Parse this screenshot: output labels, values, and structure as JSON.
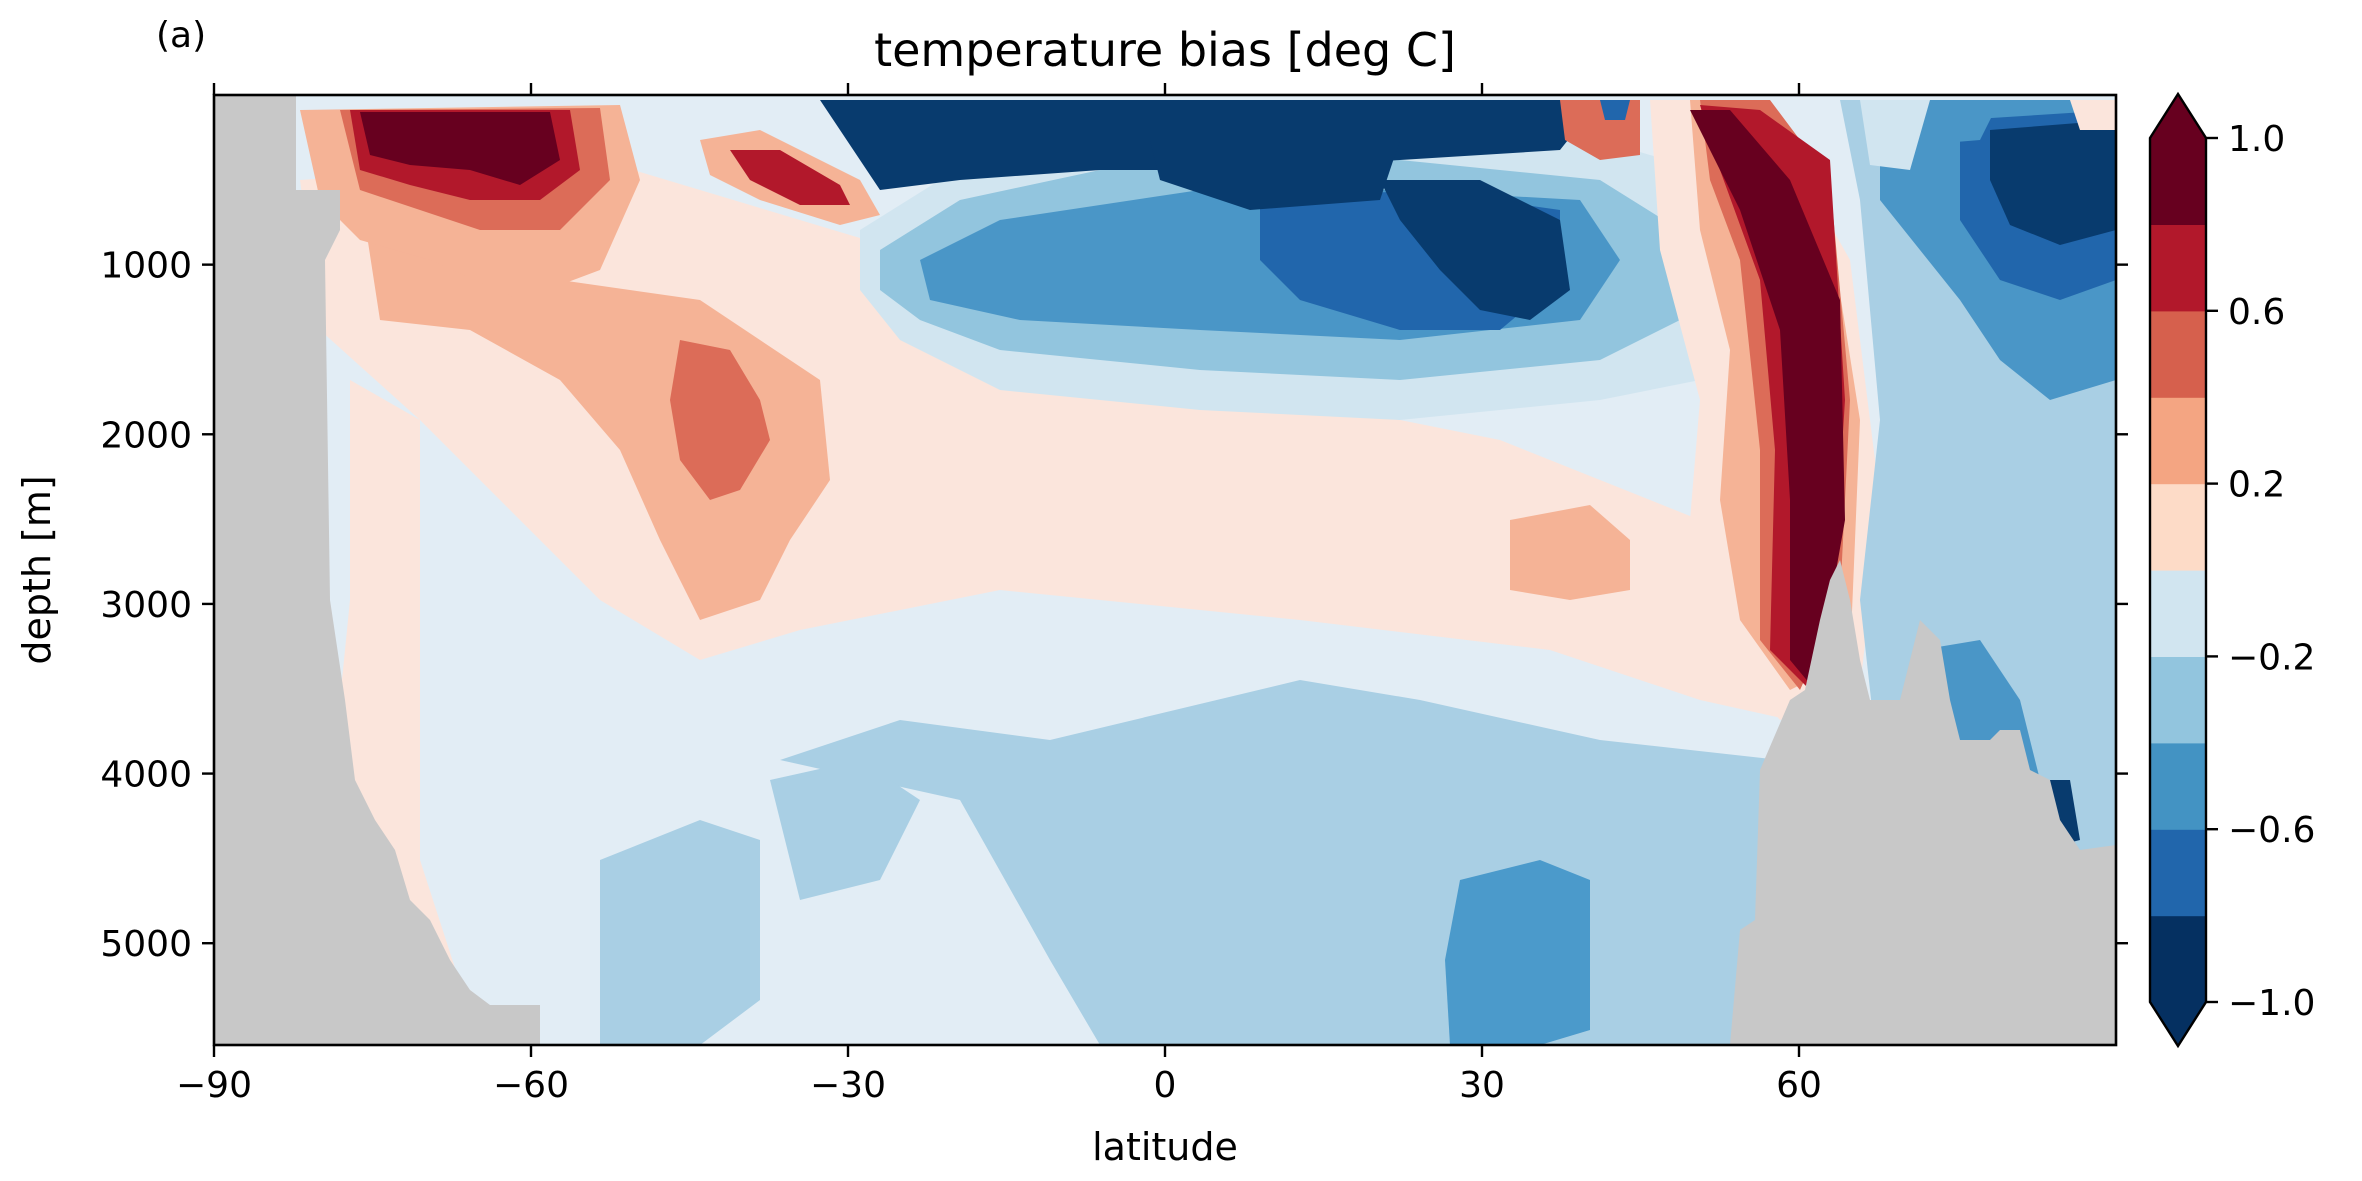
{
  "panel_label": "(a)",
  "chart_data": {
    "type": "heatmap",
    "title": "temperature bias [deg C]",
    "xlabel": "latitude",
    "ylabel": "depth [m]",
    "xlim": [
      -90,
      90
    ],
    "ylim": [
      5600,
      0
    ],
    "y_inverted": true,
    "x_ticks": [
      -90,
      -60,
      -30,
      0,
      30,
      60
    ],
    "x_tick_labels": [
      "−90",
      "−60",
      "−30",
      "0",
      "30",
      "60"
    ],
    "y_ticks": [
      1000,
      2000,
      3000,
      4000,
      5000
    ],
    "y_tick_labels": [
      "1000",
      "2000",
      "3000",
      "4000",
      "5000"
    ],
    "colorbar": {
      "levels": [
        -1.0,
        -0.8,
        -0.6,
        -0.4,
        -0.2,
        0.0,
        0.2,
        0.4,
        0.6,
        0.8,
        1.0
      ],
      "tick_values": [
        1.0,
        0.6,
        0.2,
        -0.2,
        -0.6,
        -1.0
      ],
      "tick_labels": [
        "1.0",
        "0.6",
        "0.2",
        "−0.2",
        "−0.6",
        "−1.0"
      ],
      "extend": "both",
      "colors": [
        "#053061",
        "#2166ac",
        "#4393c3",
        "#92c5de",
        "#d1e5f0",
        "#fddbc7",
        "#f4a582",
        "#d6604d",
        "#b2182b",
        "#67001f"
      ],
      "over_color": "#67001f",
      "under_color": "#053061",
      "placement": "right"
    },
    "land_color": "#c8c8c8",
    "grid": false,
    "features": [
      {
        "name": "southern-land",
        "type": "land"
      },
      {
        "name": "northern-ridge",
        "type": "land"
      },
      {
        "name": "upper-ocean-cold-bias",
        "type": "bias",
        "value": -1.0
      },
      {
        "name": "southern-warm-lobe",
        "type": "bias",
        "value": 1.0
      },
      {
        "name": "subtropical-warm-patch",
        "type": "bias",
        "value": 0.5
      },
      {
        "name": "north-atlantic-warm-plume",
        "type": "bias",
        "value": 1.0
      },
      {
        "name": "arctic-cold-bias",
        "type": "bias",
        "value": -1.0
      },
      {
        "name": "deep-cool-bias",
        "type": "bias",
        "value": -0.3
      }
    ]
  }
}
